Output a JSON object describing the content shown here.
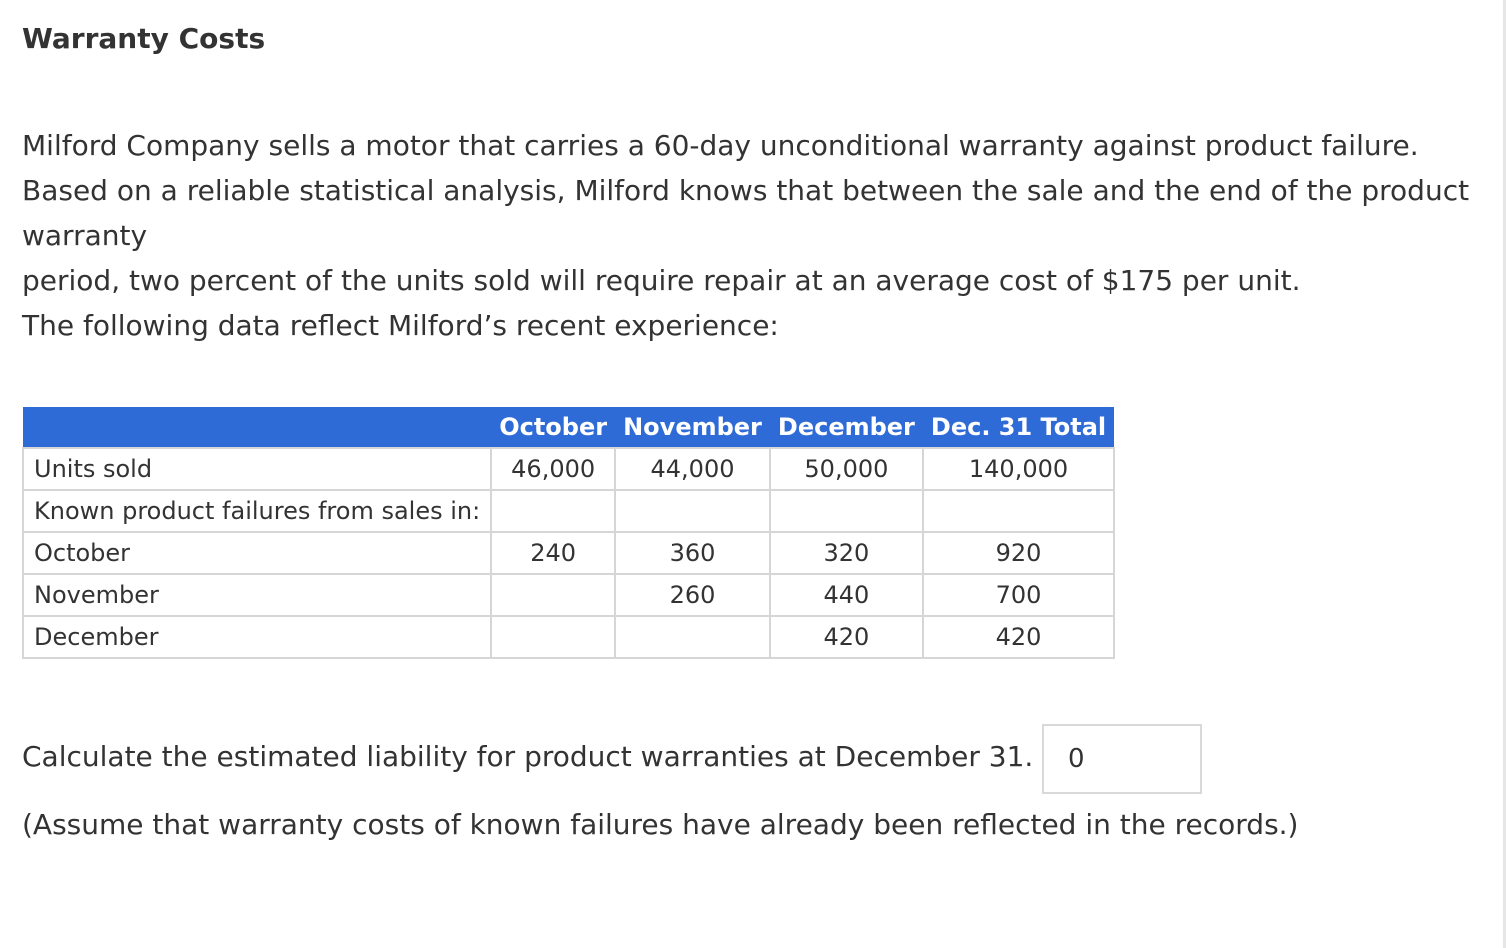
{
  "title": "Warranty Costs",
  "intro": {
    "line1": "Milford Company sells a motor that carries a 60-day unconditional warranty against product failure.",
    "line2": "Based on a reliable statistical analysis, Milford knows that between the sale and the end of the product",
    "line3": "warranty",
    "line4": "period, two percent of the units sold will require repair at an average cost of $175 per unit.",
    "line5": "The following data reflect Milford’s recent experience:"
  },
  "table": {
    "headers": [
      "",
      "October",
      "November",
      "December",
      "Dec. 31 Total"
    ],
    "rows": [
      [
        "Units sold",
        "46,000",
        "44,000",
        "50,000",
        "140,000"
      ],
      [
        "Known product failures from sales in:",
        "",
        "",
        "",
        ""
      ],
      [
        "October",
        "240",
        "360",
        "320",
        "920"
      ],
      [
        "November",
        "",
        "260",
        "440",
        "700"
      ],
      [
        "December",
        "",
        "",
        "420",
        "420"
      ]
    ]
  },
  "question": {
    "text": "Calculate the estimated liability for product warranties at December 31. $",
    "answer_value": "0"
  },
  "note": "(Assume that warranty costs of known failures have already been reflected in the records.)"
}
